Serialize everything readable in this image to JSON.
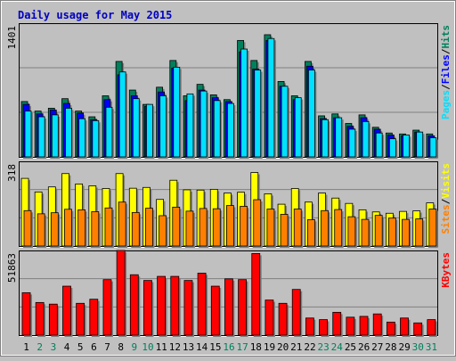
{
  "title": "Daily usage for May 2015",
  "colors": {
    "background": "#c0c0c0",
    "panel_bg": "#c0c0c0",
    "title_color": "#0000c0",
    "hits": "#00805c",
    "files": "#0000ff",
    "pages": "#00e0ff",
    "visits": "#ffff00",
    "sites": "#ff8000",
    "kbytes": "#ff0000",
    "weekend_label": "#00805c",
    "weekday_label": "#000000",
    "legend_slash": "#000000"
  },
  "chart_data": [
    {
      "type": "bar",
      "name": "hits-files-pages",
      "categories": [
        "1",
        "2",
        "3",
        "4",
        "5",
        "6",
        "7",
        "8",
        "9",
        "10",
        "11",
        "12",
        "13",
        "14",
        "15",
        "16",
        "17",
        "18",
        "19",
        "20",
        "21",
        "22",
        "23",
        "24",
        "25",
        "26",
        "27",
        "28",
        "29",
        "30",
        "31"
      ],
      "weekend_days": [
        "2",
        "3",
        "9",
        "10",
        "16",
        "17",
        "23",
        "24",
        "30",
        "31"
      ],
      "y_max_label": "1401",
      "ylim": [
        0,
        1401
      ],
      "legend": [
        {
          "text": "Pages",
          "color_key": "pages"
        },
        {
          "text": "Files",
          "color_key": "files"
        },
        {
          "text": "Hits",
          "color_key": "hits"
        }
      ],
      "series": [
        {
          "name": "Hits",
          "values": [
            580,
            480,
            510,
            610,
            480,
            420,
            640,
            1000,
            700,
            550,
            730,
            1010,
            640,
            760,
            650,
            600,
            1220,
            1010,
            1280,
            790,
            640,
            1000,
            430,
            450,
            350,
            440,
            310,
            250,
            240,
            280,
            240
          ]
        },
        {
          "name": "Files",
          "values": [
            550,
            450,
            490,
            560,
            460,
            390,
            600,
            860,
            640,
            530,
            680,
            930,
            590,
            700,
            620,
            580,
            1100,
            920,
            1220,
            740,
            600,
            950,
            400,
            410,
            320,
            410,
            290,
            230,
            220,
            260,
            220
          ]
        },
        {
          "name": "Pages",
          "values": [
            480,
            420,
            440,
            510,
            400,
            380,
            520,
            890,
            610,
            550,
            640,
            940,
            660,
            690,
            590,
            560,
            1130,
            910,
            1240,
            740,
            620,
            910,
            390,
            410,
            290,
            370,
            250,
            190,
            230,
            260,
            200
          ]
        }
      ]
    },
    {
      "type": "bar",
      "name": "visits-sites",
      "categories": [
        "1",
        "2",
        "3",
        "4",
        "5",
        "6",
        "7",
        "8",
        "9",
        "10",
        "11",
        "12",
        "13",
        "14",
        "15",
        "16",
        "17",
        "18",
        "19",
        "20",
        "21",
        "22",
        "23",
        "24",
        "25",
        "26",
        "27",
        "28",
        "29",
        "30",
        "31"
      ],
      "y_max_label": "318",
      "ylim": [
        0,
        318
      ],
      "legend": [
        {
          "text": "Sites",
          "color_key": "sites"
        },
        {
          "text": "Visits",
          "color_key": "visits"
        }
      ],
      "series": [
        {
          "name": "Visits",
          "values": [
            254,
            203,
            222,
            272,
            233,
            226,
            216,
            272,
            217,
            220,
            175,
            247,
            211,
            210,
            213,
            199,
            202,
            276,
            196,
            157,
            216,
            165,
            199,
            180,
            160,
            136,
            128,
            123,
            130,
            132,
            162
          ]
        },
        {
          "name": "Sites",
          "values": [
            133,
            121,
            125,
            138,
            136,
            129,
            143,
            165,
            126,
            142,
            114,
            146,
            131,
            141,
            140,
            152,
            149,
            174,
            139,
            119,
            139,
            99,
            133,
            137,
            110,
            100,
            115,
            105,
            100,
            102,
            139
          ]
        }
      ]
    },
    {
      "type": "bar",
      "name": "kbytes",
      "categories": [
        "1",
        "2",
        "3",
        "4",
        "5",
        "6",
        "7",
        "8",
        "9",
        "10",
        "11",
        "12",
        "13",
        "14",
        "15",
        "16",
        "17",
        "18",
        "19",
        "20",
        "21",
        "22",
        "23",
        "24",
        "25",
        "26",
        "27",
        "28",
        "29",
        "30",
        "31"
      ],
      "y_max_label": "51863",
      "ylim": [
        0,
        51863
      ],
      "legend": [
        {
          "text": "KBytes",
          "color_key": "kbytes"
        }
      ],
      "series": [
        {
          "name": "KBytes",
          "values": [
            26000,
            20000,
            19000,
            30000,
            19500,
            22000,
            34000,
            52000,
            37000,
            33500,
            36000,
            36000,
            33500,
            38000,
            30000,
            34500,
            34000,
            50000,
            21500,
            19500,
            28000,
            10500,
            9500,
            14000,
            11000,
            11500,
            13000,
            8000,
            10500,
            7500,
            9500
          ]
        }
      ]
    }
  ]
}
